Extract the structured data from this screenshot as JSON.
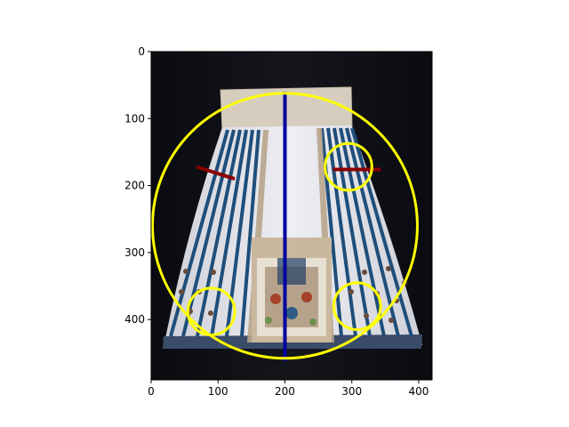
{
  "figure": {
    "x_axis": {
      "range": [
        0,
        420
      ],
      "ticks": [
        0,
        100,
        200,
        300,
        400
      ],
      "tick_labels": [
        "0",
        "100",
        "200",
        "300",
        "400"
      ]
    },
    "y_axis": {
      "range": [
        0,
        490
      ],
      "inverted": true,
      "ticks": [
        0,
        100,
        200,
        300,
        400
      ],
      "tick_labels": [
        "0",
        "100",
        "200",
        "300",
        "400"
      ]
    },
    "image": {
      "subject": "embroidered pleated skirt on dark background"
    },
    "overlays": {
      "circles": [
        {
          "cx": 200,
          "cy": 260,
          "r": 198,
          "color": "#ffff00"
        },
        {
          "cx": 295,
          "cy": 172,
          "r": 35,
          "color": "#ffff00"
        },
        {
          "cx": 90,
          "cy": 388,
          "r": 35,
          "color": "#ffff00"
        },
        {
          "cx": 308,
          "cy": 380,
          "r": 35,
          "color": "#ffff00"
        }
      ],
      "lines": [
        {
          "x1": 200,
          "y1": 60,
          "x2": 200,
          "y2": 462,
          "color": "#0000a0"
        },
        {
          "x1": 68,
          "y1": 172,
          "x2": 125,
          "y2": 190,
          "color": "#8b0000"
        },
        {
          "x1": 272,
          "y1": 176,
          "x2": 343,
          "y2": 176,
          "color": "#8b0000"
        }
      ]
    }
  }
}
